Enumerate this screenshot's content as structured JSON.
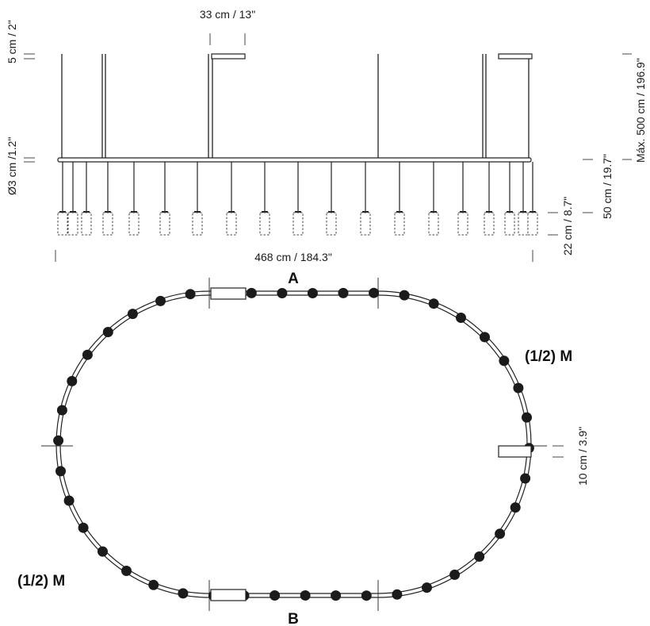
{
  "elevation": {
    "canopy_width": "33 cm / 13\"",
    "canopy_height": "5 cm / 2\"",
    "ring_diameter": "Ø3 cm /1.2\"",
    "drop_height": "50 cm / 19.7\"",
    "max_height": "Máx. 500 cm / 196.9\"",
    "lamp_height": "22 cm / 8.7\"",
    "overall_width": "468 cm / 184.3\""
  },
  "plan": {
    "label_top": "A",
    "label_bottom": "B",
    "half_module_right": "(1/2) M",
    "half_module_left": "(1/2) M",
    "connector_size": "10 cm / 3.9\""
  }
}
